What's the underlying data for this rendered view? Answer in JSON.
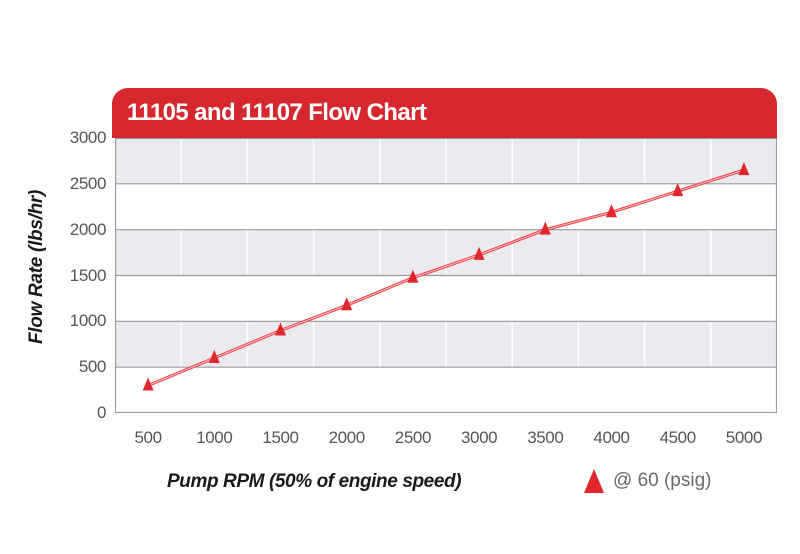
{
  "chart_data": {
    "type": "line",
    "title": "11105 and 11107 Flow Chart",
    "xlabel": "Pump RPM (50% of engine speed)",
    "ylabel": "Flow Rate (lbs/hr)",
    "series_name": "@ 60 (psig)",
    "marker": "triangle",
    "x": [
      500,
      1000,
      1500,
      2000,
      2500,
      3000,
      3500,
      4000,
      4500,
      5000
    ],
    "values": [
      300,
      600,
      900,
      1175,
      1475,
      1725,
      2000,
      2190,
      2420,
      2650
    ],
    "y_ticks": [
      0,
      500,
      1000,
      1500,
      2000,
      2500,
      3000
    ],
    "ylim": [
      0,
      3000
    ],
    "grid": "horizontal-major-with-category-boundaries",
    "band_fill": "alternating-horizontal",
    "legend_position": "bottom-right",
    "colors": {
      "banner": "#d7272e",
      "title_text": "#ffffff",
      "marker": "#e1262e",
      "line": "#ef3e44",
      "line_core": "#fbc6c8",
      "band": "#ebebef",
      "band_alt": "#ffffff",
      "grid": "#9b9b9b",
      "category_boundary_grid": "#ffffff",
      "tick_text": "#55565a",
      "axis_title_text": "#1a1a1a",
      "legend_text": "#696a6d"
    }
  }
}
